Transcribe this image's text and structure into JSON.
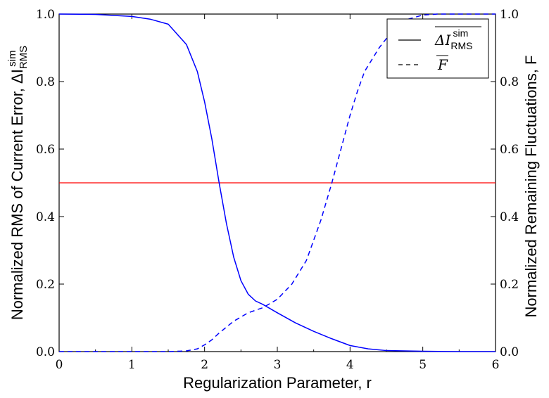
{
  "chart_data": {
    "type": "line",
    "xlabel": "Regularization Parameter, r",
    "ylabel_left": "Normalized RMS of Current Error, ΔI",
    "ylabel_left_sup": "sim",
    "ylabel_left_sub": "RMS",
    "ylabel_right": "Normalized Remaining Fluctuations, F",
    "xlim": [
      0,
      6
    ],
    "ylim": [
      0,
      1
    ],
    "x_ticks": [
      "0",
      "1",
      "2",
      "3",
      "4",
      "5",
      "6"
    ],
    "y_ticks_left": [
      "0.0",
      "0.2",
      "0.4",
      "0.6",
      "0.8",
      "1.0"
    ],
    "y_ticks_right": [
      "0.0",
      "0.2",
      "0.4",
      "0.6",
      "0.8",
      "1.0"
    ],
    "legend_position": "top-right",
    "hline": {
      "y": 0.5,
      "color": "#ff0000"
    },
    "series": [
      {
        "name": "ΔI",
        "name_sup": "sim",
        "name_sub": "RMS",
        "style": "solid",
        "color": "#0000ff",
        "x": [
          0,
          0.5,
          1.0,
          1.25,
          1.5,
          1.75,
          1.9,
          2.0,
          2.1,
          2.2,
          2.3,
          2.4,
          2.5,
          2.6,
          2.7,
          2.8,
          3.0,
          3.25,
          3.5,
          3.75,
          4.0,
          4.25,
          4.5,
          5.0,
          5.5,
          6.0
        ],
        "y": [
          1.0,
          0.999,
          0.993,
          0.985,
          0.97,
          0.91,
          0.83,
          0.74,
          0.63,
          0.5,
          0.38,
          0.28,
          0.21,
          0.17,
          0.15,
          0.14,
          0.115,
          0.085,
          0.06,
          0.038,
          0.018,
          0.008,
          0.003,
          0.001,
          0.0,
          0.0
        ]
      },
      {
        "name": "F",
        "style": "dashed",
        "color": "#0000ff",
        "x": [
          0,
          1.0,
          1.5,
          1.75,
          1.9,
          2.0,
          2.1,
          2.2,
          2.4,
          2.6,
          2.8,
          3.0,
          3.2,
          3.4,
          3.6,
          3.75,
          3.9,
          4.0,
          4.1,
          4.2,
          4.4,
          4.6,
          4.8,
          5.0,
          5.2,
          6.0
        ],
        "y": [
          0.0,
          0.0,
          0.0,
          0.002,
          0.008,
          0.02,
          0.035,
          0.055,
          0.09,
          0.115,
          0.13,
          0.155,
          0.2,
          0.27,
          0.39,
          0.5,
          0.62,
          0.7,
          0.77,
          0.83,
          0.9,
          0.955,
          0.985,
          0.997,
          1.0,
          1.0
        ]
      }
    ]
  }
}
